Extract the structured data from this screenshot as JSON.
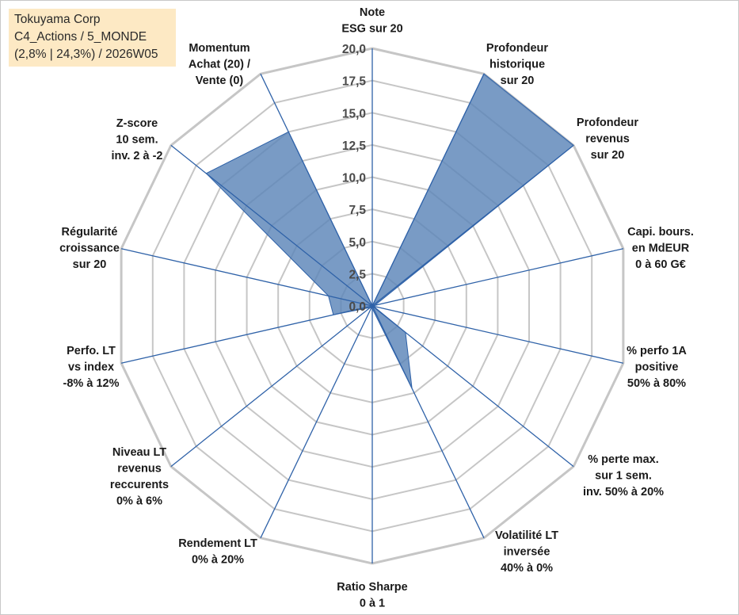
{
  "header": {
    "line1": "Tokuyama Corp",
    "line2": "C4_Actions / 5_MONDE",
    "line3": "(2,8% | 24,3%) / 2026W05"
  },
  "colors": {
    "fill": "#5b85b8",
    "line": "#2f62a8",
    "grid": "#c6c6c6",
    "title_bg": "#fde9c4"
  },
  "chart_data": {
    "type": "radar",
    "r_min": 0,
    "r_max": 20,
    "r_step": 2.5,
    "tick_labels": [
      "0,0",
      "2,5",
      "5,0",
      "7,5",
      "10,0",
      "12,5",
      "15,0",
      "17,5",
      "20,0"
    ],
    "axes": [
      {
        "label": [
          "Note",
          "ESG sur 20"
        ],
        "value": 0
      },
      {
        "label": [
          "Profondeur",
          "historique",
          "sur 20"
        ],
        "value": 20
      },
      {
        "label": [
          "Profondeur",
          "revenus",
          "sur 20"
        ],
        "value": 20
      },
      {
        "label": [
          "Capi. bours.",
          "en MdEUR",
          "0 à 60 G€"
        ],
        "value": 0.2
      },
      {
        "label": [
          "% perfo 1A",
          "positive",
          "50% à 80%"
        ],
        "value": 0.1
      },
      {
        "label": [
          "% perte max.",
          "sur 1 sem.",
          "inv. 50% à 20%"
        ],
        "value": 3.3
      },
      {
        "label": [
          "Volatilité LT",
          "inversée",
          "40% à 0%"
        ],
        "value": 7.1
      },
      {
        "label": [
          "Ratio Sharpe",
          "0 à 1"
        ],
        "value": 0.2
      },
      {
        "label": [
          "Rendement LT",
          "0% à 20%"
        ],
        "value": 0.2
      },
      {
        "label": [
          "Niveau LT",
          "revenus",
          "reccurents",
          "0% à 6%"
        ],
        "value": 0.2
      },
      {
        "label": [
          "Perfo. LT",
          "vs index",
          "-8% à 12%"
        ],
        "value": 3.1
      },
      {
        "label": [
          "Régularité",
          "croissance",
          "sur 20"
        ],
        "value": 3.5
      },
      {
        "label": [
          "Z-score",
          "10 sem.",
          "inv. 2 à -2"
        ],
        "value": 16.5
      },
      {
        "label": [
          "Momentum",
          "Achat (20) /",
          "Vente (0)"
        ],
        "value": 15
      }
    ]
  }
}
